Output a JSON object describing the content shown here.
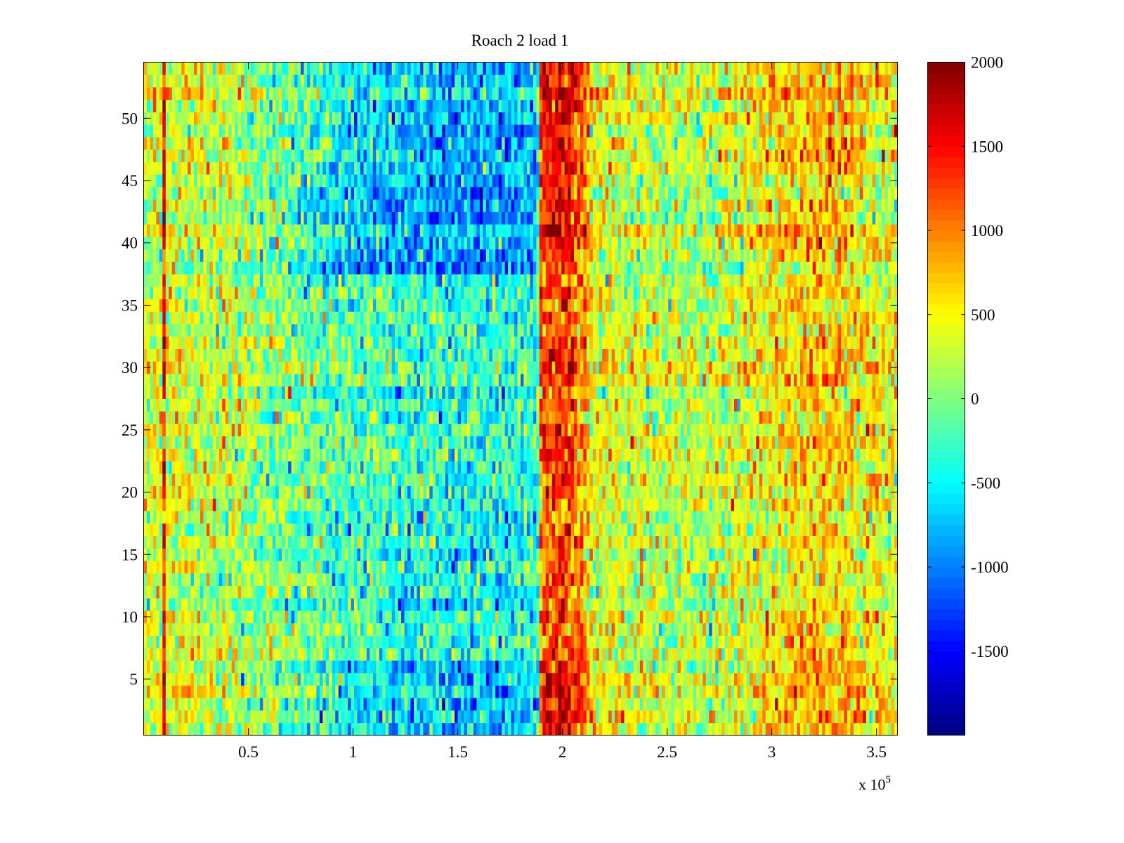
{
  "chart_data": {
    "type": "heatmap",
    "title": "Roach 2 load 1",
    "xlabel": "",
    "ylabel": "",
    "x_exponent_label": "x 10",
    "x_exponent": "5",
    "xlim": [
      0,
      3.6
    ],
    "ylim": [
      0.5,
      54.5
    ],
    "rows": 54,
    "columns": 240,
    "x_ticks": [
      0.5,
      1,
      1.5,
      2,
      2.5,
      3,
      3.5
    ],
    "x_tick_labels": [
      "0.5",
      "1",
      "1.5",
      "2",
      "2.5",
      "3",
      "3.5"
    ],
    "y_ticks": [
      5,
      10,
      15,
      20,
      25,
      30,
      35,
      40,
      45,
      50
    ],
    "y_tick_labels": [
      "5",
      "10",
      "15",
      "20",
      "25",
      "30",
      "35",
      "40",
      "45",
      "50"
    ],
    "colorbar": {
      "colormap": "jet",
      "clim": [
        -2000,
        2000
      ],
      "ticks": [
        2000,
        1500,
        1000,
        500,
        0,
        -500,
        -1000,
        -1500
      ],
      "tick_labels": [
        "2000",
        "1500",
        "1000",
        "500",
        "0",
        "-500",
        "-1000",
        "-1500"
      ]
    },
    "column_mean_profile": [
      [
        0.0,
        250
      ],
      [
        0.09,
        350
      ],
      [
        0.1,
        1500
      ],
      [
        0.11,
        350
      ],
      [
        0.3,
        300
      ],
      [
        0.5,
        150
      ],
      [
        1.0,
        -250
      ],
      [
        1.5,
        -400
      ],
      [
        1.88,
        -350
      ],
      [
        1.9,
        1100
      ],
      [
        2.0,
        1300
      ],
      [
        2.1,
        900
      ],
      [
        2.15,
        400
      ],
      [
        2.6,
        200
      ],
      [
        2.8,
        300
      ],
      [
        3.1,
        600
      ],
      [
        3.25,
        700
      ],
      [
        3.6,
        350
      ]
    ],
    "edge_row_emphasis": {
      "top_rows_from": 38,
      "bottom_rows_to": 6,
      "factor": 1.8
    },
    "noise_std": 380
  }
}
